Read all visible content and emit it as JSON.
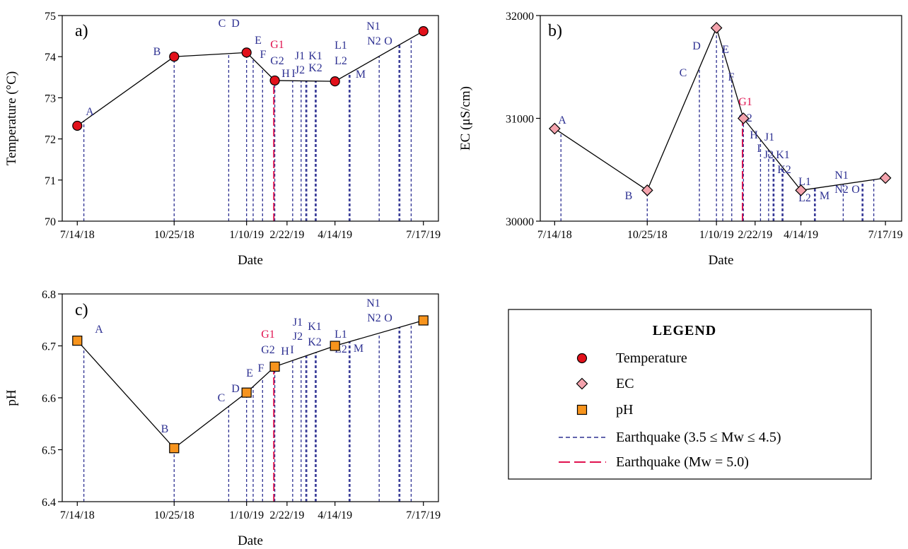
{
  "colors": {
    "eq_minor": "#2e3192",
    "eq_major": "#e0124f",
    "temperature_marker": "#e2111b",
    "ec_marker": "#f4a3ad",
    "ph_marker": "#f7941d",
    "line": "#000000"
  },
  "x_axis": {
    "ticks": [
      {
        "date": "2018-07-14",
        "label": "7/14/18"
      },
      {
        "date": "2018-10-25",
        "label": "10/25/18"
      },
      {
        "date": "2019-01-10",
        "label": "1/10/19"
      },
      {
        "date": "2019-02-22",
        "label": "2/22/19"
      },
      {
        "date": "2019-04-14",
        "label": "4/14/19"
      },
      {
        "date": "2019-07-17",
        "label": "7/17/19"
      }
    ]
  },
  "earthquakes": [
    {
      "label": "A",
      "date": "2018-07-21",
      "type": "minor"
    },
    {
      "label": "B",
      "date": "2018-10-25",
      "type": "minor"
    },
    {
      "label": "C",
      "date": "2018-12-22",
      "type": "minor"
    },
    {
      "label": "D",
      "date": "2019-01-10",
      "type": "minor"
    },
    {
      "label": "E",
      "date": "2019-01-17",
      "type": "minor"
    },
    {
      "label": "F",
      "date": "2019-01-27",
      "type": "minor"
    },
    {
      "label": "G1",
      "date": "2019-02-08",
      "type": "major"
    },
    {
      "label": "G2",
      "date": "2019-02-09",
      "type": "minor"
    },
    {
      "label": "H",
      "date": "2019-02-28",
      "type": "minor"
    },
    {
      "label": "I",
      "date": "2019-03-09",
      "type": "minor"
    },
    {
      "label": "J1",
      "date": "2019-03-14",
      "type": "minor"
    },
    {
      "label": "J2",
      "date": "2019-03-15",
      "type": "minor"
    },
    {
      "label": "K1",
      "date": "2019-03-24",
      "type": "minor"
    },
    {
      "label": "K2",
      "date": "2019-03-25",
      "type": "minor"
    },
    {
      "label": "L1",
      "date": "2019-04-29",
      "type": "minor"
    },
    {
      "label": "L2",
      "date": "2019-04-30",
      "type": "minor"
    },
    {
      "label": "M",
      "date": "2019-05-31",
      "type": "minor"
    },
    {
      "label": "N1",
      "date": "2019-06-21",
      "type": "minor"
    },
    {
      "label": "N2",
      "date": "2019-06-22",
      "type": "minor"
    },
    {
      "label": "O",
      "date": "2019-07-04",
      "type": "minor"
    }
  ],
  "chart_data": [
    {
      "type": "line",
      "panel": "a)",
      "xlabel": "Date",
      "ylabel": "Temperature (°C)",
      "ylim": [
        70,
        75
      ],
      "yticks": [
        70,
        71,
        72,
        73,
        74,
        75
      ],
      "series": [
        {
          "name": "Temperature",
          "marker": "circle",
          "points": [
            {
              "x": "2018-07-14",
              "y": 72.32
            },
            {
              "x": "2018-10-25",
              "y": 74.0
            },
            {
              "x": "2019-01-10",
              "y": 74.1
            },
            {
              "x": "2019-02-09",
              "y": 73.42
            },
            {
              "x": "2019-04-14",
              "y": 73.4
            },
            {
              "x": "2019-07-17",
              "y": 74.62
            }
          ]
        }
      ]
    },
    {
      "type": "line",
      "panel": "b)",
      "xlabel": "Date",
      "ylabel": "EC (μS/cm)",
      "ylim": [
        30000,
        32000
      ],
      "yticks": [
        30000,
        31000,
        32000
      ],
      "series": [
        {
          "name": "EC",
          "marker": "diamond",
          "points": [
            {
              "x": "2018-07-14",
              "y": 30900
            },
            {
              "x": "2018-10-25",
              "y": 30300
            },
            {
              "x": "2019-01-10",
              "y": 31880
            },
            {
              "x": "2019-02-09",
              "y": 31000
            },
            {
              "x": "2019-04-14",
              "y": 30300
            },
            {
              "x": "2019-07-17",
              "y": 30420
            }
          ]
        }
      ]
    },
    {
      "type": "line",
      "panel": "c)",
      "xlabel": "Date",
      "ylabel": "pH",
      "ylim": [
        6.4,
        6.8
      ],
      "yticks": [
        6.4,
        6.5,
        6.6,
        6.7,
        6.8
      ],
      "series": [
        {
          "name": "pH",
          "marker": "square",
          "points": [
            {
              "x": "2018-07-14",
              "y": 6.71
            },
            {
              "x": "2018-10-25",
              "y": 6.503
            },
            {
              "x": "2019-01-10",
              "y": 6.61
            },
            {
              "x": "2019-02-09",
              "y": 6.66
            },
            {
              "x": "2019-04-14",
              "y": 6.7
            },
            {
              "x": "2019-07-17",
              "y": 6.749
            }
          ]
        }
      ]
    }
  ],
  "legend": {
    "title": "LEGEND",
    "items": [
      {
        "marker": "circle",
        "label": "Temperature"
      },
      {
        "marker": "diamond",
        "label": "EC"
      },
      {
        "marker": "square",
        "label": "pH"
      },
      {
        "marker": "eq-minor",
        "label": "Earthquake (3.5 ≤ Mw ≤ 4.5)"
      },
      {
        "marker": "eq-major",
        "label": "Earthquake (Mw = 5.0)"
      }
    ]
  }
}
